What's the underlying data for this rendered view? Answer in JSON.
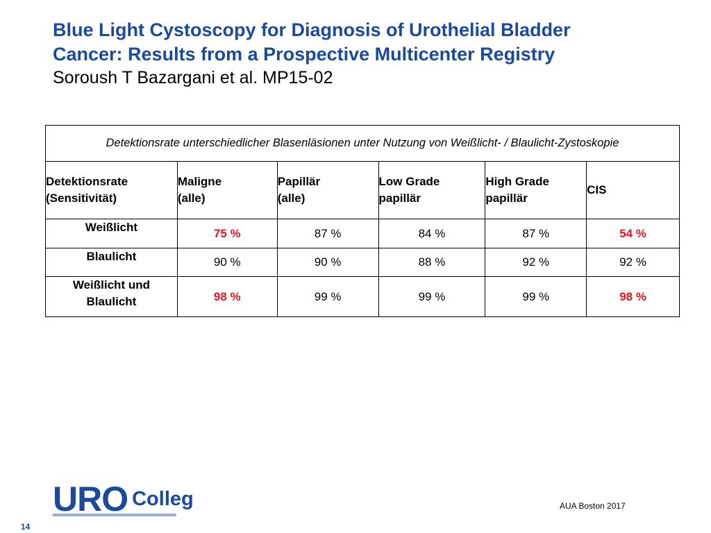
{
  "title": {
    "line1": "Blue Light Cystoscopy for Diagnosis of Urothelial Bladder",
    "line2": "Cancer: Results from a Prospective Multicenter Registry",
    "authors": "Soroush T Bazargani et al. MP15-02"
  },
  "table": {
    "caption": "Detektionsrate unterschiedlicher Blasenläsionen unter Nutzung von Weißlicht- / Blaulicht-Zystoskopie",
    "headers": [
      {
        "line1": "Detektionsrate",
        "line2": "(Sensitivität)"
      },
      {
        "line1": "Maligne",
        "line2": "(alle)"
      },
      {
        "line1": "Papillär",
        "line2": "(alle)"
      },
      {
        "line1": "Low Grade",
        "line2": "papillär"
      },
      {
        "line1": "High Grade",
        "line2": "papillär"
      },
      {
        "line1": "CIS",
        "line2": ""
      }
    ],
    "rows": [
      {
        "label_line1": "Weißlicht",
        "label_line2": "",
        "values": [
          "75 %",
          "87 %",
          "84 %",
          "87 %",
          "54 %"
        ]
      },
      {
        "label_line1": "Blaulicht",
        "label_line2": "",
        "values": [
          "90 %",
          "90 %",
          "88 %",
          "92 %",
          "92 %"
        ]
      },
      {
        "label_line1": "Weißlicht und",
        "label_line2": "Blaulicht",
        "values": [
          "98 %",
          "99 %",
          "99 %",
          "99 %",
          "98 %"
        ]
      }
    ],
    "highlight_color": "#e0141e"
  },
  "logo": {
    "part1": "URO",
    "part2": "Colleg",
    "color": "#1a4a9c"
  },
  "footer": {
    "conference": "AUA Boston 2017",
    "page_number": "14"
  }
}
